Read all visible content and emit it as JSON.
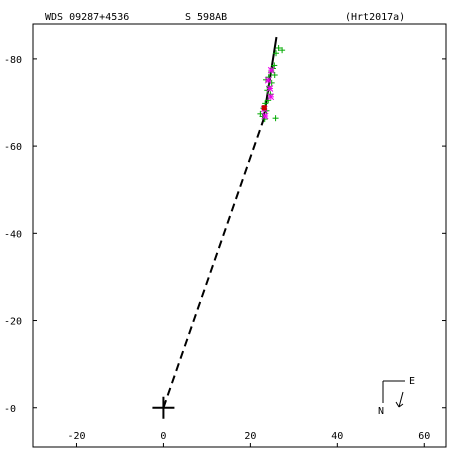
{
  "header": {
    "system_id": "WDS 09287+4536",
    "discoverer": "S   598AB",
    "reference": "(Hrt2017a)"
  },
  "compass": {
    "north_label": "N",
    "east_label": "E"
  },
  "chart_data": {
    "type": "scatter",
    "title": "WDS 09287+4536          S   598AB",
    "xlim": [
      -30,
      65
    ],
    "ylim": [
      -9,
      88
    ],
    "x_ticks": [
      -20,
      0,
      20,
      40,
      60
    ],
    "x_tick_labels": [
      "-20",
      "0",
      "20",
      "40",
      "60"
    ],
    "y_ticks": [
      0,
      20,
      40,
      60,
      80
    ],
    "y_tick_labels": [
      "-0",
      "-20",
      "-40",
      "-60",
      "-80"
    ],
    "grid": false,
    "primary_position": [
      0,
      0
    ],
    "orbit_line": [
      [
        23.0,
        66.0
      ],
      [
        26.0,
        85.0
      ]
    ],
    "projection_line": [
      [
        0,
        0
      ],
      [
        23.0,
        66.0
      ]
    ],
    "series": [
      {
        "marker": "plus",
        "color": "#00aa00",
        "points": [
          [
            26.5,
            82.5
          ],
          [
            27.3,
            82.0
          ],
          [
            25.9,
            81.3
          ],
          [
            25.5,
            78.5
          ],
          [
            25.2,
            77.8
          ],
          [
            24.8,
            77.0
          ],
          [
            25.6,
            76.3
          ],
          [
            24.2,
            75.8
          ],
          [
            23.6,
            75.2
          ],
          [
            24.9,
            74.5
          ],
          [
            24.3,
            73.6
          ],
          [
            23.9,
            72.8
          ],
          [
            24.6,
            71.9
          ],
          [
            24.1,
            70.5
          ],
          [
            23.4,
            69.8
          ],
          [
            23.0,
            68.7
          ],
          [
            23.7,
            68.1
          ],
          [
            22.3,
            67.4
          ],
          [
            22.8,
            66.8
          ],
          [
            23.3,
            66.2
          ],
          [
            25.8,
            66.4
          ]
        ]
      },
      {
        "marker": "asterisk",
        "color": "#ee00ee",
        "points": [
          [
            24.8,
            77.4
          ],
          [
            24.1,
            75.1
          ],
          [
            24.5,
            73.2
          ],
          [
            24.7,
            71.3
          ],
          [
            23.2,
            68.5
          ],
          [
            23.4,
            66.9
          ]
        ]
      },
      {
        "marker": "square",
        "color": "#cc0000",
        "points": [
          [
            23.2,
            68.8
          ]
        ]
      }
    ]
  }
}
